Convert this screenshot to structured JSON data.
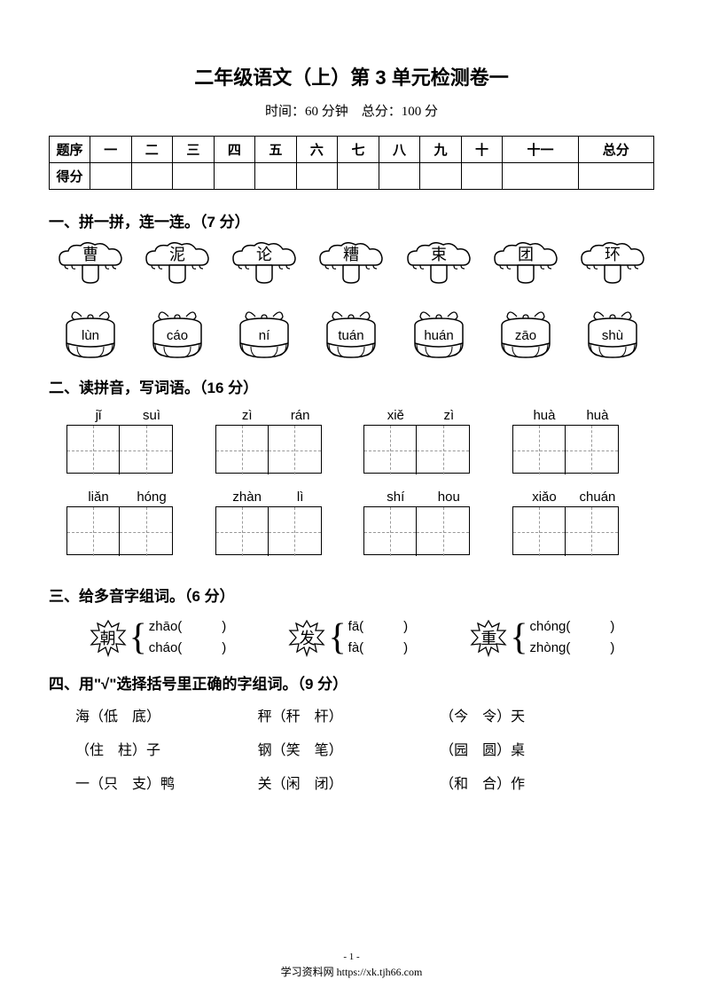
{
  "colors": {
    "text": "#000000",
    "bg": "#ffffff",
    "dash": "#999999"
  },
  "title": "二年级语文（上）第 3 单元检测卷一",
  "subtitle": "时间：60 分钟　总分：100 分",
  "score_table": {
    "row_labels": [
      "题序",
      "得分"
    ],
    "columns": [
      "一",
      "二",
      "三",
      "四",
      "五",
      "六",
      "七",
      "八",
      "九",
      "十",
      "十一",
      "总分"
    ]
  },
  "q1": {
    "heading": "一、拼一拼，连一连。（7 分）",
    "top_chars": [
      "曹",
      "泥",
      "论",
      "糟",
      "束",
      "团",
      "环"
    ],
    "bottom_pinyin": [
      "lùn",
      "cáo",
      "ní",
      "tuán",
      "huán",
      "zāo",
      "shù"
    ]
  },
  "q2": {
    "heading": "二、读拼音，写词语。（16 分）",
    "items": [
      {
        "pinyin": [
          "jǐ",
          "suì"
        ]
      },
      {
        "pinyin": [
          "zì",
          "rán"
        ]
      },
      {
        "pinyin": [
          "xiě",
          "zì"
        ]
      },
      {
        "pinyin": [
          "huà",
          "huà"
        ]
      },
      {
        "pinyin": [
          "liǎn",
          "hóng"
        ]
      },
      {
        "pinyin": [
          "zhàn",
          "lì"
        ]
      },
      {
        "pinyin": [
          "shí",
          "hou"
        ]
      },
      {
        "pinyin": [
          "xiǎo",
          "chuán"
        ]
      }
    ]
  },
  "q3": {
    "heading": "三、给多音字组词。（6 分）",
    "items": [
      {
        "char": "朝",
        "readings": [
          "zhāo(　　　)",
          "cháo(　　　)"
        ]
      },
      {
        "char": "发",
        "readings": [
          "fā(　　　)",
          "fà(　　　)"
        ]
      },
      {
        "char": "重",
        "readings": [
          "chóng(　　　)",
          "zhòng(　　　)"
        ]
      }
    ]
  },
  "q4": {
    "heading": "四、用\"√\"选择括号里正确的字组词。（9 分）",
    "items": [
      "海（低　底）",
      "秤（秆　杆）",
      "（今　令）天",
      "（住　柱）子",
      "钢（笑　笔）",
      "（园　圆）桌",
      "一（只　支）鸭",
      "关（闲　闭）",
      "（和　合）作"
    ]
  },
  "footer": {
    "page_num": "- 1 -",
    "site": "学习资料网 https://xk.tjh66.com"
  }
}
